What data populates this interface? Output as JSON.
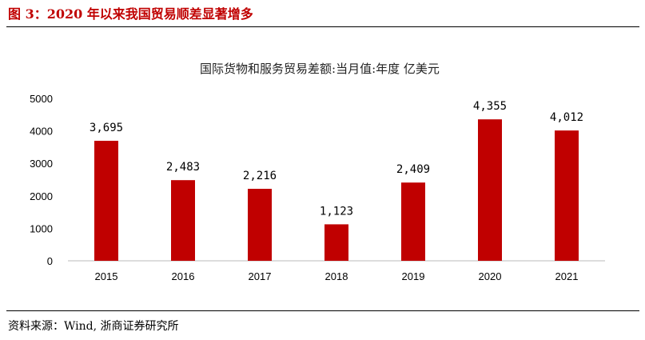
{
  "figure_title": "图 3：2020 年以来我国贸易顺差显著增多",
  "source": "资料来源：Wind, 浙商证券研究所",
  "chart_data": {
    "type": "bar",
    "title": "国际货物和服务贸易差额:当月值:年度 亿美元",
    "categories": [
      "2015",
      "2016",
      "2017",
      "2018",
      "2019",
      "2020",
      "2021"
    ],
    "values": [
      3695,
      2483,
      2216,
      1123,
      2409,
      4355,
      4012
    ],
    "data_labels": [
      "3,695",
      "2,483",
      "2,216",
      "1,123",
      "2,409",
      "4,355",
      "4,012"
    ],
    "yticks": [
      "0",
      "1000",
      "2000",
      "3000",
      "4000",
      "5000"
    ],
    "ylim": [
      0,
      5000
    ],
    "xlabel": "",
    "ylabel": "",
    "grid": false,
    "bar_color": "#c00000"
  }
}
